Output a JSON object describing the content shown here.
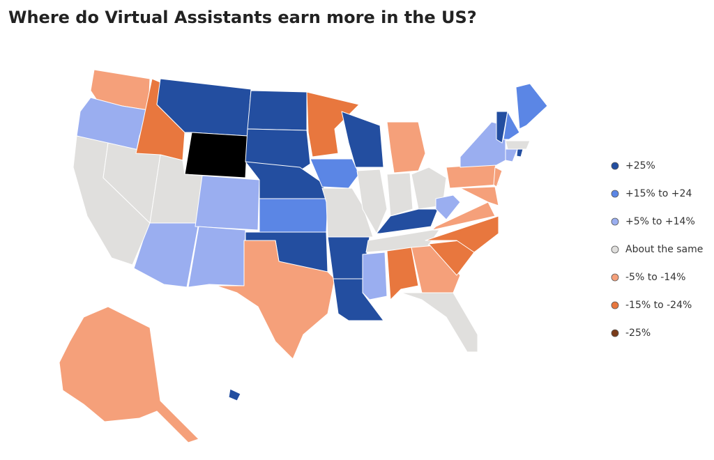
{
  "title": "Where do Virtual Assistants earn more in the US?",
  "legend": [
    {
      "label": "+25%",
      "color": "#234ea0"
    },
    {
      "label": "+15% to +24",
      "color": "#5b86e5"
    },
    {
      "label": "+5% to +14%",
      "color": "#9aaef0"
    },
    {
      "label": "About the same",
      "color": "#e0dfdd"
    },
    {
      "label": "-5% to -14%",
      "color": "#f5a07a"
    },
    {
      "label": "-15% to -24%",
      "color": "#e8773e"
    },
    {
      "label": "-25%",
      "color": "#7a3b1a"
    }
  ]
}
